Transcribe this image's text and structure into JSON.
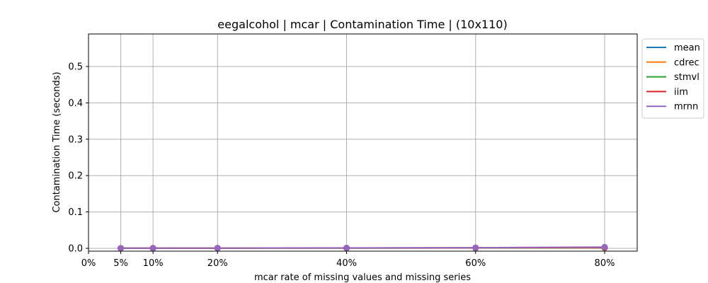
{
  "chart_data": {
    "type": "line",
    "title": "eegalcohol | mcar | Contamination Time | (10x110)",
    "xlabel": "mcar rate of missing values and missing series",
    "ylabel": "Contamination Time (seconds)",
    "x": [
      0.05,
      0.1,
      0.2,
      0.4,
      0.6,
      0.8
    ],
    "xlim": [
      0,
      0.8
    ],
    "ylim": [
      -0.011,
      0.59
    ],
    "xticks": [
      0,
      0.05,
      0.1,
      0.2,
      0.4,
      0.6,
      0.8
    ],
    "xtick_labels": [
      "0%",
      "5%",
      "10%",
      "20%",
      "40%",
      "60%",
      "80%"
    ],
    "yticks": [
      0.0,
      0.1,
      0.2,
      0.3,
      0.4,
      0.5
    ],
    "ytick_labels": [
      "0.0",
      "0.1",
      "0.2",
      "0.3",
      "0.4",
      "0.5"
    ],
    "grid": true,
    "legend_position": "outside-top-right",
    "series": [
      {
        "name": "mean",
        "color": "#1f77b4",
        "values": [
          0.0003,
          0.0004,
          0.0005,
          0.0007,
          0.001,
          0.0015
        ]
      },
      {
        "name": "cdrec",
        "color": "#ff7f0e",
        "values": [
          0.0003,
          0.0004,
          0.0005,
          0.0007,
          0.001,
          0.0015
        ]
      },
      {
        "name": "stmvl",
        "color": "#2ca02c",
        "values": [
          0.0003,
          0.0004,
          0.0005,
          0.0008,
          0.0011,
          0.002
        ]
      },
      {
        "name": "iim",
        "color": "#d62728",
        "values": [
          0.0003,
          0.0004,
          0.0006,
          0.0009,
          0.0013,
          0.0025
        ]
      },
      {
        "name": "mrnn",
        "color": "#9467bd",
        "values": [
          0.0004,
          0.0005,
          0.0008,
          0.0012,
          0.0018,
          0.0035
        ]
      }
    ]
  }
}
